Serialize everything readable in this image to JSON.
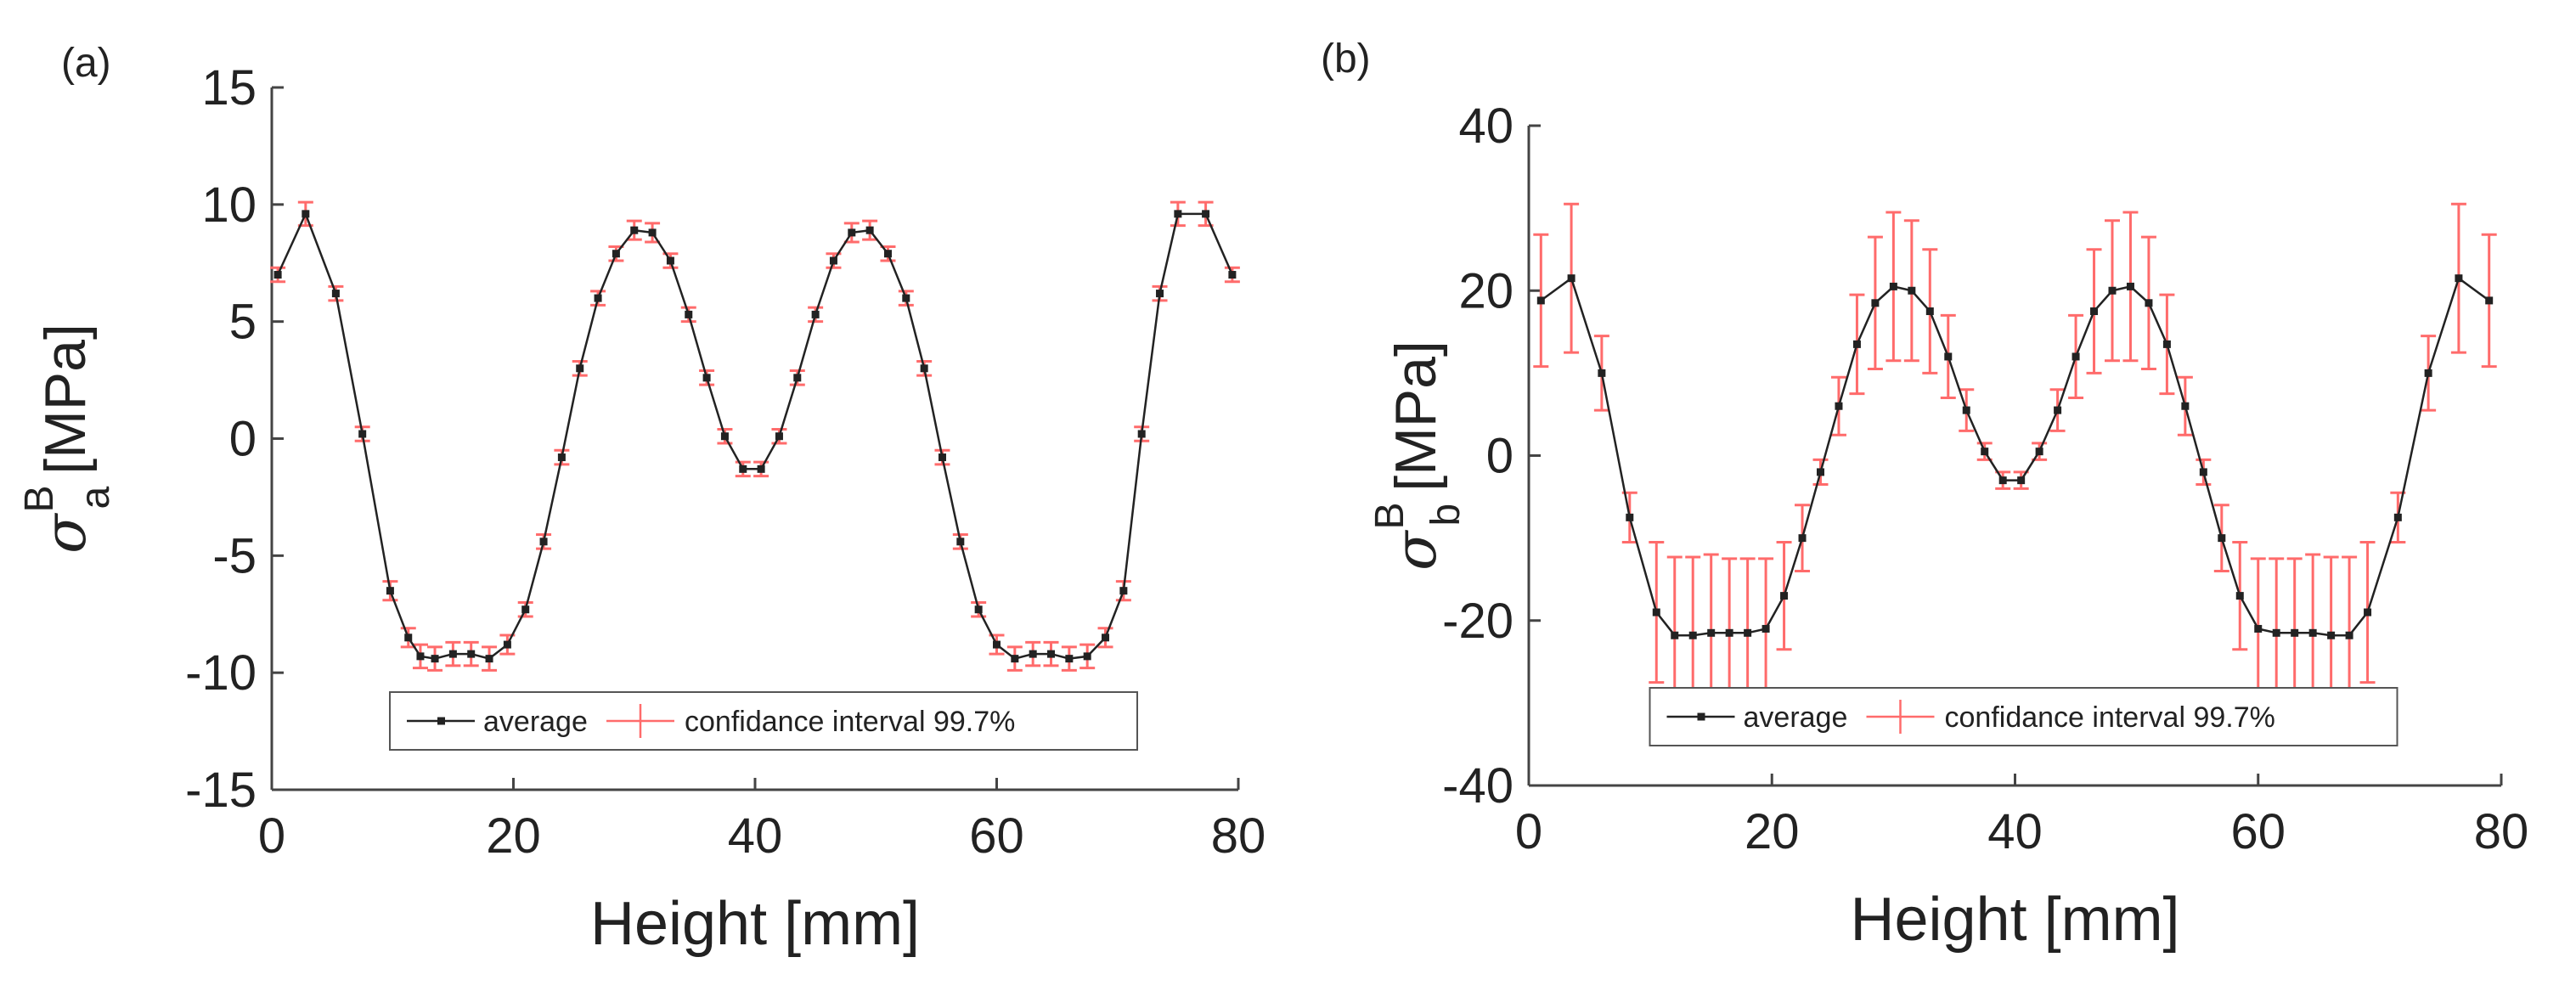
{
  "figure": {
    "colors": {
      "average": "#222222",
      "ci": "#ff6b6b",
      "axis": "#444444"
    }
  },
  "chart_data": [
    {
      "type": "line",
      "panel_label": "(a)",
      "xlabel": "Height [mm]",
      "ylabel": {
        "symbol": "σ",
        "sup": "B",
        "sub": "a",
        "unit": "[MPa]"
      },
      "xlim": [
        0,
        80
      ],
      "ylim": [
        -15,
        15
      ],
      "xticks": [
        0,
        20,
        40,
        60,
        80
      ],
      "yticks": [
        -15,
        -10,
        -5,
        0,
        5,
        10,
        15
      ],
      "grid": false,
      "legend": {
        "position": "bottom-center",
        "entries": [
          "average",
          "confidance interval 99.7%"
        ]
      },
      "series": [
        {
          "name": "average",
          "x": [
            0.5,
            2.8,
            5.3,
            7.5,
            9.8,
            11.3,
            12.3,
            13.5,
            15.0,
            16.5,
            18.0,
            19.5,
            21.0,
            22.5,
            24.0,
            25.5,
            27.0,
            28.5,
            30.0,
            31.5,
            33.0,
            34.5,
            36.0,
            37.5,
            39.0,
            40.5,
            42.0,
            43.5,
            45.0,
            46.5,
            48.0,
            49.5,
            51.0,
            52.5,
            54.0,
            55.5,
            57.0,
            58.5,
            60.0,
            61.5,
            63.0,
            64.5,
            66.0,
            67.5,
            69.0,
            70.5,
            72.0,
            73.5,
            75.0,
            77.3,
            79.5
          ],
          "values": [
            7.0,
            9.6,
            6.2,
            0.2,
            -6.5,
            -8.5,
            -9.3,
            -9.4,
            -9.2,
            -9.2,
            -9.4,
            -8.8,
            -7.3,
            -4.4,
            -0.8,
            3.0,
            6.0,
            7.9,
            8.9,
            8.8,
            7.6,
            5.3,
            2.6,
            0.1,
            -1.3,
            -1.3,
            0.1,
            2.6,
            5.3,
            7.6,
            8.8,
            8.9,
            7.9,
            6.0,
            3.0,
            -0.8,
            -4.4,
            -7.3,
            -8.8,
            -9.4,
            -9.2,
            -9.2,
            -9.4,
            -9.3,
            -8.5,
            -6.5,
            0.2,
            6.2,
            9.6,
            9.6,
            7.0
          ],
          "ci_halfwidth": [
            0.3,
            0.5,
            0.3,
            0.3,
            0.4,
            0.4,
            0.5,
            0.5,
            0.5,
            0.5,
            0.5,
            0.4,
            0.3,
            0.3,
            0.3,
            0.3,
            0.3,
            0.3,
            0.4,
            0.4,
            0.3,
            0.3,
            0.3,
            0.3,
            0.3,
            0.3,
            0.3,
            0.3,
            0.3,
            0.3,
            0.4,
            0.4,
            0.3,
            0.3,
            0.3,
            0.3,
            0.3,
            0.3,
            0.4,
            0.5,
            0.5,
            0.5,
            0.5,
            0.5,
            0.4,
            0.4,
            0.3,
            0.3,
            0.5,
            0.5,
            0.3
          ]
        }
      ]
    },
    {
      "type": "line",
      "panel_label": "(b)",
      "xlabel": "Height [mm]",
      "ylabel": {
        "symbol": "σ",
        "sup": "B",
        "sub": "b",
        "unit": "[MPa]"
      },
      "xlim": [
        0,
        80
      ],
      "ylim": [
        -40,
        40
      ],
      "xticks": [
        0,
        20,
        40,
        60,
        80
      ],
      "yticks": [
        -40,
        -20,
        0,
        20,
        40
      ],
      "grid": false,
      "legend": {
        "position": "bottom-center",
        "entries": [
          "average",
          "confidance interval 99.7%"
        ]
      },
      "series": [
        {
          "name": "average",
          "x": [
            1.0,
            3.5,
            6.0,
            8.3,
            10.5,
            12.0,
            13.5,
            15.0,
            16.5,
            18.0,
            19.5,
            21.0,
            22.5,
            24.0,
            25.5,
            27.0,
            28.5,
            30.0,
            31.5,
            33.0,
            34.5,
            36.0,
            37.5,
            39.0,
            40.5,
            42.0,
            43.5,
            45.0,
            46.5,
            48.0,
            49.5,
            51.0,
            52.5,
            54.0,
            55.5,
            57.0,
            58.5,
            60.0,
            61.5,
            63.0,
            64.5,
            66.0,
            67.5,
            69.0,
            71.5,
            74.0,
            76.5,
            79.0
          ],
          "values": [
            18.8,
            21.5,
            10.0,
            -7.5,
            -19.0,
            -21.8,
            -21.8,
            -21.5,
            -21.5,
            -21.5,
            -21.0,
            -17.0,
            -10.0,
            -2.0,
            6.0,
            13.5,
            18.5,
            20.5,
            20.0,
            17.5,
            12.0,
            5.5,
            0.5,
            -3.0,
            -3.0,
            0.5,
            5.5,
            12.0,
            17.5,
            20.0,
            20.5,
            18.5,
            13.5,
            6.0,
            -2.0,
            -10.0,
            -17.0,
            -21.0,
            -21.5,
            -21.5,
            -21.5,
            -21.8,
            -21.8,
            -19.0,
            -7.5,
            10.0,
            21.5,
            18.8
          ],
          "ci_halfwidth": [
            8,
            9,
            4.5,
            3,
            8.5,
            9.5,
            9.5,
            9.5,
            9,
            9,
            8.5,
            6.5,
            4,
            1.5,
            3.5,
            6,
            8,
            9,
            8.5,
            7.5,
            5,
            2.5,
            1,
            1,
            1,
            1,
            2.5,
            5,
            7.5,
            8.5,
            9,
            8,
            6,
            3.5,
            1.5,
            4,
            6.5,
            8.5,
            9,
            9,
            9.5,
            9.5,
            9.5,
            8.5,
            3,
            4.5,
            9,
            8
          ]
        }
      ]
    }
  ]
}
